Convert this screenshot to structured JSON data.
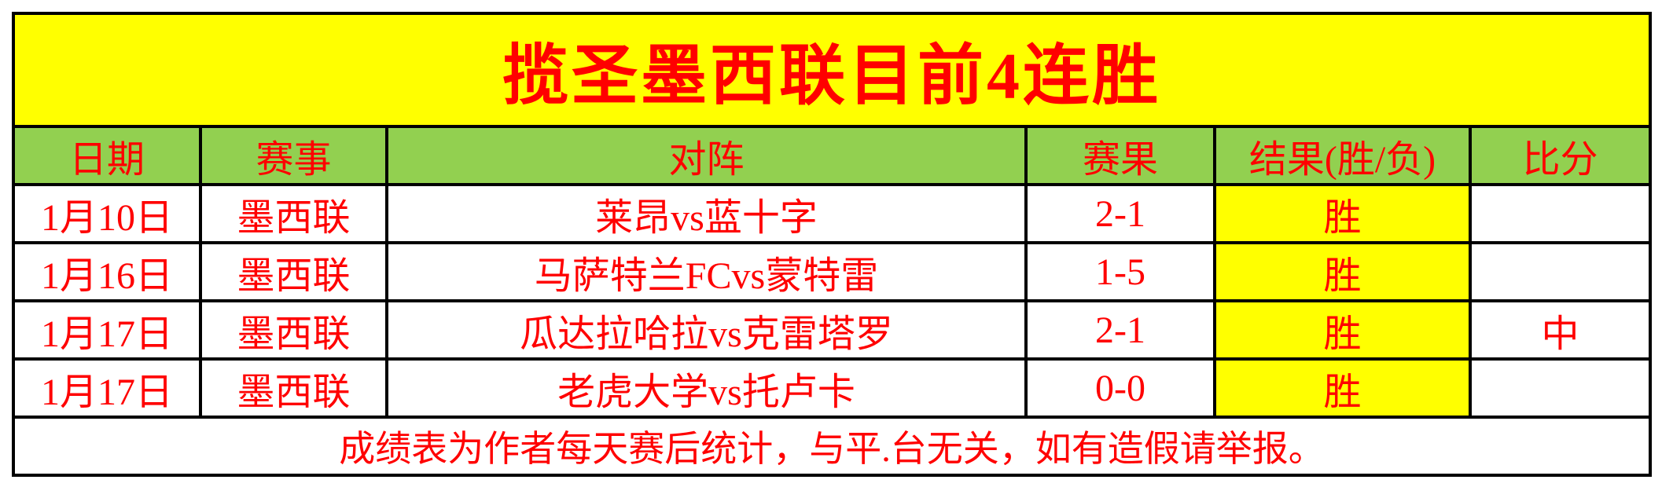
{
  "title": "揽圣墨西联目前4连胜",
  "table": {
    "headers": [
      "日期",
      "赛事",
      "对阵",
      "赛果",
      "结果(胜/负)",
      "比分"
    ],
    "rows": [
      {
        "date": "1月10日",
        "league": "墨西联",
        "match": "莱昂vs蓝十字",
        "score": "2-1",
        "result": "胜",
        "bifen": ""
      },
      {
        "date": "1月16日",
        "league": "墨西联",
        "match": "马萨特兰FCvs蒙特雷",
        "score": "1-5",
        "result": "胜",
        "bifen": ""
      },
      {
        "date": "1月17日",
        "league": "墨西联",
        "match": "瓜达拉哈拉vs克雷塔罗",
        "score": "2-1",
        "result": "胜",
        "bifen": "中"
      },
      {
        "date": "1月17日",
        "league": "墨西联",
        "match": "老虎大学vs托卢卡",
        "score": "0-0",
        "result": "胜",
        "bifen": ""
      }
    ],
    "footer": "成绩表为作者每天赛后统计，与平.台无关，如有造假请举报。"
  },
  "colors": {
    "banner_bg": "#FFFF00",
    "header_bg": "#92D050",
    "result_cell_bg": "#FFFF00",
    "text": "#FF0000",
    "border": "#000000"
  }
}
